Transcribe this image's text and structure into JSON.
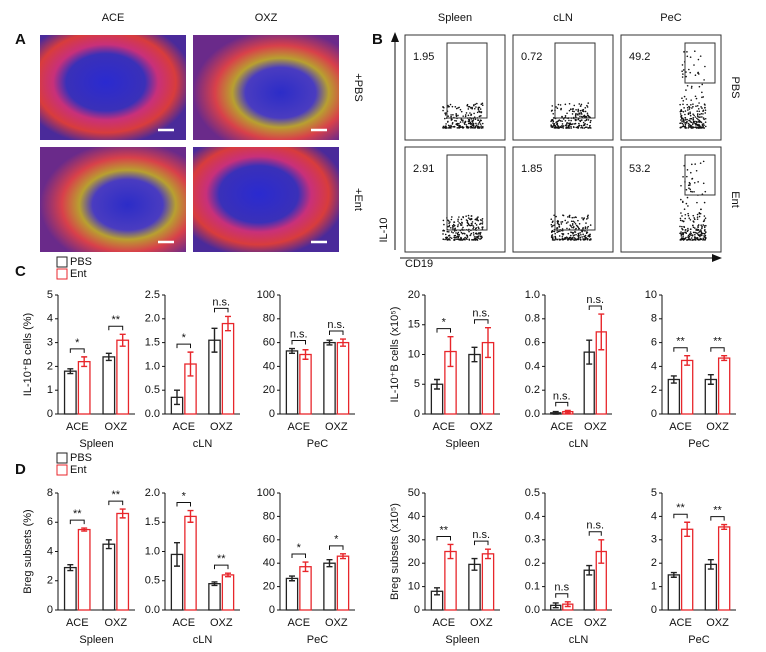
{
  "panel_labels": [
    "A",
    "B",
    "C",
    "D"
  ],
  "images": {
    "columns": [
      "ACE",
      "OXZ"
    ],
    "rows": [
      "+PBS",
      "+Ent"
    ]
  },
  "flow": {
    "columns": [
      "Spleen",
      "cLN",
      "PeC"
    ],
    "rows": [
      "PBS",
      "Ent"
    ],
    "gates": [
      [
        1.95,
        0.72,
        49.2
      ],
      [
        2.91,
        1.85,
        53.2
      ]
    ],
    "x_label": "CD19",
    "y_label": "IL-10"
  },
  "legends": [
    [
      {
        "name": "PBS",
        "color": "#222222"
      },
      {
        "name": "Ent",
        "color": "#e8262b"
      }
    ],
    [
      {
        "name": "PBS",
        "color": "#222222"
      },
      {
        "name": "Ent",
        "color": "#e8262b"
      }
    ]
  ],
  "chart_data": [
    {
      "type": "bar",
      "ylabel": "IL-10⁺B cells (%)",
      "xlabel": "Spleen",
      "categories": [
        "ACE",
        "OXZ"
      ],
      "ylim": [
        0,
        5
      ],
      "yticks": [
        0,
        1,
        2,
        3,
        4,
        5
      ],
      "significance": [
        "*",
        "**"
      ],
      "series": [
        {
          "color": "#222222",
          "values": [
            1.8,
            2.4
          ],
          "errors": [
            0.1,
            0.15
          ]
        },
        {
          "color": "#e8262b",
          "values": [
            2.2,
            3.1
          ],
          "errors": [
            0.2,
            0.25
          ]
        }
      ]
    },
    {
      "type": "bar",
      "xlabel": "cLN",
      "categories": [
        "ACE",
        "OXZ"
      ],
      "ylim": [
        0,
        2.5
      ],
      "yticks": [
        {
          "value": 0,
          "label": "0.0"
        },
        0.5,
        {
          "value": 1,
          "label": "1.0"
        },
        1.5,
        {
          "value": 2,
          "label": "2.0"
        },
        2.5
      ],
      "significance": [
        "*",
        "n.s."
      ],
      "series": [
        {
          "color": "#222222",
          "values": [
            0.35,
            1.55
          ],
          "errors": [
            0.15,
            0.25
          ]
        },
        {
          "color": "#e8262b",
          "values": [
            1.05,
            1.9
          ],
          "errors": [
            0.25,
            0.15
          ]
        }
      ]
    },
    {
      "type": "bar",
      "xlabel": "PeC",
      "categories": [
        "ACE",
        "OXZ"
      ],
      "ylim": [
        0,
        100
      ],
      "yticks": [
        0,
        20,
        40,
        60,
        80,
        100
      ],
      "significance": [
        "n.s.",
        "n.s."
      ],
      "series": [
        {
          "color": "#222222",
          "values": [
            53,
            60
          ],
          "errors": [
            2,
            2
          ]
        },
        {
          "color": "#e8262b",
          "values": [
            50,
            60
          ],
          "errors": [
            4,
            3
          ]
        }
      ]
    },
    {
      "type": "bar",
      "ylabel": "IL-10⁺B cells (x10⁵)",
      "xlabel": "Spleen",
      "categories": [
        "ACE",
        "OXZ"
      ],
      "ylim": [
        0,
        20
      ],
      "yticks": [
        0,
        5,
        10,
        15,
        20
      ],
      "significance": [
        "*",
        "n.s."
      ],
      "series": [
        {
          "color": "#222222",
          "values": [
            5,
            10
          ],
          "errors": [
            0.8,
            1.2
          ]
        },
        {
          "color": "#e8262b",
          "values": [
            10.5,
            12
          ],
          "errors": [
            2.5,
            2.5
          ]
        }
      ]
    },
    {
      "type": "bar",
      "xlabel": "cLN",
      "categories": [
        "ACE",
        "OXZ"
      ],
      "ylim": [
        0,
        1
      ],
      "yticks": [
        {
          "value": 0,
          "label": "0.0"
        },
        0.2,
        0.4,
        0.6,
        0.8,
        {
          "value": 1,
          "label": "1.0"
        }
      ],
      "significance": [
        "n.s.",
        "n.s."
      ],
      "series": [
        {
          "color": "#222222",
          "values": [
            0.01,
            0.52
          ],
          "errors": [
            0.01,
            0.1
          ]
        },
        {
          "color": "#e8262b",
          "values": [
            0.02,
            0.69
          ],
          "errors": [
            0.01,
            0.15
          ]
        }
      ]
    },
    {
      "type": "bar",
      "xlabel": "PeC",
      "categories": [
        "ACE",
        "OXZ"
      ],
      "ylim": [
        0,
        10
      ],
      "yticks": [
        0,
        2,
        4,
        6,
        8,
        10
      ],
      "significance": [
        "**",
        "**"
      ],
      "series": [
        {
          "color": "#222222",
          "values": [
            2.9,
            2.9
          ],
          "errors": [
            0.3,
            0.4
          ]
        },
        {
          "color": "#e8262b",
          "values": [
            4.5,
            4.7
          ],
          "errors": [
            0.4,
            0.2
          ]
        }
      ]
    },
    {
      "type": "bar",
      "ylabel": "Breg subsets (%)",
      "xlabel": "Spleen",
      "categories": [
        "ACE",
        "OXZ"
      ],
      "ylim": [
        0,
        8
      ],
      "yticks": [
        0,
        2,
        4,
        6,
        8
      ],
      "significance": [
        "**",
        "**"
      ],
      "series": [
        {
          "color": "#222222",
          "values": [
            2.9,
            4.5
          ],
          "errors": [
            0.2,
            0.3
          ]
        },
        {
          "color": "#e8262b",
          "values": [
            5.5,
            6.6
          ],
          "errors": [
            0.1,
            0.3
          ]
        }
      ]
    },
    {
      "type": "bar",
      "xlabel": "cLN",
      "categories": [
        "ACE",
        "OXZ"
      ],
      "ylim": [
        0,
        2
      ],
      "yticks": [
        {
          "value": 0,
          "label": "0.0"
        },
        0.5,
        {
          "value": 1,
          "label": "1.0"
        },
        1.5,
        {
          "value": 2,
          "label": "2.0"
        }
      ],
      "significance": [
        "*",
        "**"
      ],
      "series": [
        {
          "color": "#222222",
          "values": [
            0.95,
            0.45
          ],
          "errors": [
            0.2,
            0.03
          ]
        },
        {
          "color": "#e8262b",
          "values": [
            1.6,
            0.6
          ],
          "errors": [
            0.1,
            0.03
          ]
        }
      ]
    },
    {
      "type": "bar",
      "xlabel": "PeC",
      "categories": [
        "ACE",
        "OXZ"
      ],
      "ylim": [
        0,
        100
      ],
      "yticks": [
        0,
        20,
        40,
        60,
        80,
        100
      ],
      "significance": [
        "*",
        "*"
      ],
      "series": [
        {
          "color": "#222222",
          "values": [
            27,
            40
          ],
          "errors": [
            2,
            3
          ]
        },
        {
          "color": "#e8262b",
          "values": [
            37,
            46
          ],
          "errors": [
            4,
            2
          ]
        }
      ]
    },
    {
      "type": "bar",
      "ylabel": "Breg subsets (x10⁵)",
      "xlabel": "Spleen",
      "categories": [
        "ACE",
        "OXZ"
      ],
      "ylim": [
        0,
        50
      ],
      "yticks": [
        0,
        10,
        20,
        30,
        40,
        50
      ],
      "significance": [
        "**",
        "n.s."
      ],
      "series": [
        {
          "color": "#222222",
          "values": [
            8,
            19.5
          ],
          "errors": [
            1.5,
            2.5
          ]
        },
        {
          "color": "#e8262b",
          "values": [
            25,
            24
          ],
          "errors": [
            3,
            2
          ]
        }
      ]
    },
    {
      "type": "bar",
      "xlabel": "cLN",
      "categories": [
        "ACE",
        "OXZ"
      ],
      "ylim": [
        0,
        0.5
      ],
      "yticks": [
        {
          "value": 0,
          "label": "0.0"
        },
        0.1,
        0.2,
        0.3,
        0.4,
        0.5
      ],
      "significance": [
        "n.s",
        "n.s."
      ],
      "series": [
        {
          "color": "#222222",
          "values": [
            0.02,
            0.17
          ],
          "errors": [
            0.01,
            0.02
          ]
        },
        {
          "color": "#e8262b",
          "values": [
            0.025,
            0.25
          ],
          "errors": [
            0.01,
            0.05
          ]
        }
      ]
    },
    {
      "type": "bar",
      "xlabel": "PeC",
      "categories": [
        "ACE",
        "OXZ"
      ],
      "ylim": [
        0,
        5
      ],
      "yticks": [
        0,
        1,
        2,
        3,
        4,
        5
      ],
      "significance": [
        "**",
        "**"
      ],
      "series": [
        {
          "color": "#222222",
          "values": [
            1.5,
            1.95
          ],
          "errors": [
            0.1,
            0.2
          ]
        },
        {
          "color": "#e8262b",
          "values": [
            3.45,
            3.55
          ],
          "errors": [
            0.3,
            0.1
          ]
        }
      ]
    }
  ]
}
